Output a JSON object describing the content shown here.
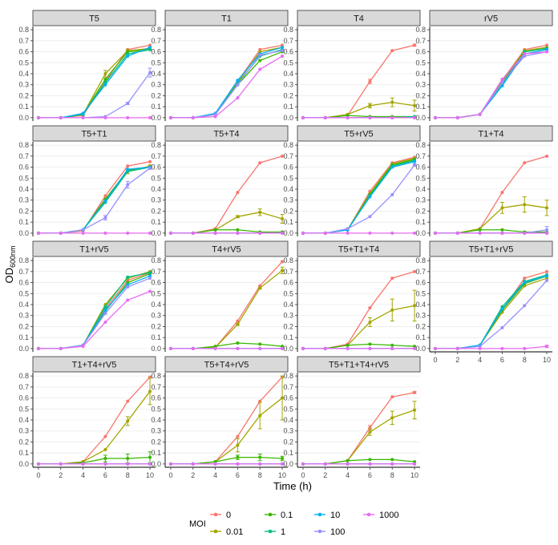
{
  "chart_data": {
    "type": "line",
    "xlabel": "Time (h)",
    "ylabel_main": "OD",
    "ylabel_sub": "600nm",
    "x": [
      0,
      2,
      4,
      6,
      8,
      10
    ],
    "x_ticks": [
      0,
      2,
      4,
      6,
      8,
      10
    ],
    "y_ticks": [
      0.0,
      0.1,
      0.2,
      0.3,
      0.4,
      0.5,
      0.6,
      0.7,
      0.8
    ],
    "y_tick_labels": [
      "0.0",
      "0.1",
      "0.2",
      "0.3",
      "0.4",
      "0.5",
      "0.6",
      "0.7",
      "0.8"
    ],
    "ylim": [
      -0.03,
      0.83
    ],
    "xlim": [
      -0.5,
      10.5
    ],
    "legend": {
      "title": "MOI",
      "position": "bottom",
      "entries": [
        {
          "key": "0",
          "label": "0",
          "color": "#F8766D"
        },
        {
          "key": "0.01",
          "label": "0.01",
          "color": "#A3A500"
        },
        {
          "key": "0.1",
          "label": "0.1",
          "color": "#39B600"
        },
        {
          "key": "1",
          "label": "1",
          "color": "#00BF7D"
        },
        {
          "key": "10",
          "label": "10",
          "color": "#00B0F6"
        },
        {
          "key": "100",
          "label": "100",
          "color": "#9590FF"
        },
        {
          "key": "1000",
          "label": "1000",
          "color": "#E76BF3"
        }
      ]
    },
    "panels": [
      {
        "title": "T5",
        "series": {
          "0": [
            0,
            0,
            0.02,
            0.33,
            0.62,
            0.66
          ],
          "0.01": [
            0,
            0,
            0.03,
            0.4,
            0.61,
            0.63
          ],
          "0.1": [
            0,
            0,
            0.03,
            0.35,
            0.6,
            0.62
          ],
          "1": [
            0,
            0,
            0.03,
            0.32,
            0.58,
            0.62
          ],
          "10": [
            0,
            0,
            0.04,
            0.3,
            0.56,
            0.64
          ],
          "100": [
            0,
            0,
            0,
            0.01,
            0.13,
            0.41
          ],
          "1000": [
            0,
            0,
            0,
            0,
            0,
            0
          ]
        },
        "errors": {
          "100": [
            0,
            0,
            0,
            0,
            0.01,
            0.04
          ],
          "0.01": [
            0,
            0,
            0,
            0.03,
            0.01,
            0.01
          ]
        }
      },
      {
        "title": "T1",
        "series": {
          "0": [
            0,
            0,
            0.03,
            0.33,
            0.62,
            0.66
          ],
          "0.01": [
            0,
            0,
            0.03,
            0.32,
            0.6,
            0.64
          ],
          "0.1": [
            0,
            0,
            0.03,
            0.3,
            0.52,
            0.6
          ],
          "1": [
            0,
            0,
            0.03,
            0.31,
            0.56,
            0.62
          ],
          "10": [
            0,
            0,
            0.04,
            0.34,
            0.58,
            0.64
          ],
          "100": [
            0,
            0,
            0.03,
            0.3,
            0.57,
            0.61
          ],
          "1000": [
            0,
            0,
            0.01,
            0.18,
            0.44,
            0.56
          ]
        },
        "errors": {}
      },
      {
        "title": "T4",
        "series": {
          "0": [
            0,
            0,
            0.02,
            0.33,
            0.61,
            0.66
          ],
          "0.01": [
            0,
            0,
            0.03,
            0.11,
            0.14,
            0.11
          ],
          "0.1": [
            0,
            0,
            0.02,
            0.01,
            0.01,
            0.01
          ],
          "1": [
            0,
            0,
            0,
            0,
            0,
            0.01
          ],
          "10": [
            0,
            0,
            0,
            0,
            0,
            0
          ],
          "100": [
            0,
            0,
            0,
            0,
            0,
            0
          ],
          "1000": [
            0,
            0,
            0,
            0,
            0,
            0
          ]
        },
        "errors": {
          "0.01": [
            0,
            0,
            0,
            0.02,
            0.04,
            0.05
          ],
          "0": [
            0,
            0,
            0,
            0.02,
            0,
            0.01
          ]
        }
      },
      {
        "title": "rV5",
        "series": {
          "0": [
            0,
            0,
            0.03,
            0.34,
            0.62,
            0.66
          ],
          "0.01": [
            0,
            0,
            0.03,
            0.33,
            0.61,
            0.64
          ],
          "0.1": [
            0,
            0,
            0.03,
            0.32,
            0.6,
            0.63
          ],
          "1": [
            0,
            0,
            0.03,
            0.3,
            0.6,
            0.63
          ],
          "10": [
            0,
            0,
            0.03,
            0.29,
            0.58,
            0.62
          ],
          "100": [
            0,
            0,
            0.03,
            0.32,
            0.56,
            0.6
          ],
          "1000": [
            0,
            0,
            0.03,
            0.35,
            0.58,
            0.6
          ]
        },
        "errors": {}
      },
      {
        "title": "T5+T1",
        "series": {
          "0": [
            0,
            0,
            0.02,
            0.34,
            0.61,
            0.65
          ],
          "0.01": [
            0,
            0,
            0.03,
            0.3,
            0.56,
            0.61
          ],
          "0.1": [
            0,
            0,
            0.03,
            0.31,
            0.57,
            0.6
          ],
          "1": [
            0,
            0,
            0.03,
            0.28,
            0.56,
            0.6
          ],
          "10": [
            0,
            0,
            0.03,
            0.29,
            0.58,
            0.6
          ],
          "100": [
            0,
            0,
            0.03,
            0.14,
            0.44,
            0.59
          ],
          "1000": [
            0,
            0,
            0,
            0,
            0,
            0
          ]
        },
        "errors": {
          "100": [
            0,
            0,
            0,
            0.02,
            0.03,
            0.01
          ],
          "0.01": [
            0,
            0,
            0,
            0,
            0.02,
            0.01
          ]
        }
      },
      {
        "title": "T5+T4",
        "series": {
          "0": [
            0,
            0,
            0.04,
            0.37,
            0.64,
            0.7
          ],
          "0.01": [
            0,
            0,
            0.03,
            0.15,
            0.19,
            0.13
          ],
          "0.1": [
            0,
            0,
            0.03,
            0.03,
            0.01,
            0.01
          ],
          "1": [
            0,
            0,
            0,
            0,
            0,
            0
          ],
          "10": [
            0,
            0,
            0,
            0,
            0,
            0
          ],
          "100": [
            0,
            0,
            0,
            0,
            0,
            0
          ],
          "1000": [
            0,
            0,
            0,
            0,
            0,
            0
          ]
        },
        "errors": {
          "0.01": [
            0,
            0,
            0,
            0.01,
            0.03,
            0.04
          ]
        }
      },
      {
        "title": "T5+rV5",
        "series": {
          "0": [
            0,
            0,
            0.03,
            0.38,
            0.64,
            0.69
          ],
          "0.01": [
            0,
            0,
            0.03,
            0.36,
            0.63,
            0.68
          ],
          "0.1": [
            0,
            0,
            0.03,
            0.35,
            0.62,
            0.67
          ],
          "1": [
            0,
            0,
            0.03,
            0.34,
            0.61,
            0.66
          ],
          "10": [
            0,
            0,
            0.03,
            0.33,
            0.6,
            0.65
          ],
          "100": [
            0,
            0,
            0.04,
            0.15,
            0.35,
            0.62
          ],
          "1000": [
            0,
            0,
            0,
            0,
            0,
            0
          ]
        },
        "errors": {
          "100": [
            0,
            0,
            0,
            0,
            0,
            0.01
          ]
        }
      },
      {
        "title": "T1+T4",
        "series": {
          "0": [
            0,
            0,
            0.04,
            0.37,
            0.64,
            0.7
          ],
          "0.01": [
            0,
            0,
            0.04,
            0.23,
            0.26,
            0.23
          ],
          "0.1": [
            0,
            0,
            0.03,
            0.03,
            0.01,
            0.01
          ],
          "1": [
            0,
            0,
            0,
            0,
            0,
            0
          ],
          "10": [
            0,
            0,
            0,
            0,
            0,
            0
          ],
          "100": [
            0,
            0,
            0,
            0,
            0,
            0.03
          ],
          "1000": [
            0,
            0,
            0,
            0,
            0,
            0
          ]
        },
        "errors": {
          "0.01": [
            0,
            0,
            0,
            0.05,
            0.07,
            0.07
          ],
          "100": [
            0,
            0,
            0,
            0,
            0,
            0.03
          ]
        }
      },
      {
        "title": "T1+rV5",
        "series": {
          "0": [
            0,
            0,
            0.03,
            0.36,
            0.62,
            0.69
          ],
          "0.01": [
            0,
            0,
            0.03,
            0.4,
            0.64,
            0.7
          ],
          "0.1": [
            0,
            0,
            0.03,
            0.34,
            0.6,
            0.68
          ],
          "1": [
            0,
            0,
            0.03,
            0.38,
            0.65,
            0.69
          ],
          "10": [
            0,
            0,
            0.03,
            0.35,
            0.58,
            0.66
          ],
          "100": [
            0,
            0,
            0.03,
            0.32,
            0.56,
            0.64
          ],
          "1000": [
            0,
            0,
            0.02,
            0.24,
            0.44,
            0.52
          ]
        },
        "errors": {}
      },
      {
        "title": "T4+rV5",
        "series": {
          "0": [
            0,
            0,
            0.01,
            0.25,
            0.57,
            0.79
          ],
          "0.01": [
            0,
            0,
            0.01,
            0.22,
            0.55,
            0.71
          ],
          "0.1": [
            0,
            0,
            0.02,
            0.05,
            0.04,
            0.02
          ],
          "1": [
            0,
            0,
            0,
            0,
            0,
            0
          ],
          "10": [
            0,
            0,
            0,
            0,
            0,
            0
          ],
          "100": [
            0,
            0,
            0,
            0,
            0,
            0
          ],
          "1000": [
            0,
            0,
            0,
            0,
            0,
            0
          ]
        },
        "errors": {
          "0.01": [
            0,
            0,
            0,
            0.01,
            0.01,
            0.03
          ]
        }
      },
      {
        "title": "T5+T1+T4",
        "series": {
          "0": [
            0,
            0,
            0.04,
            0.37,
            0.64,
            0.7
          ],
          "0.01": [
            0,
            0,
            0.03,
            0.24,
            0.35,
            0.39
          ],
          "0.1": [
            0,
            0,
            0.03,
            0.04,
            0.03,
            0.02
          ],
          "1": [
            0,
            0,
            0,
            0,
            0,
            0
          ],
          "10": [
            0,
            0,
            0,
            0,
            0,
            0
          ],
          "100": [
            0,
            0,
            0,
            0,
            0,
            0
          ],
          "1000": [
            0,
            0,
            0,
            0,
            0,
            0
          ]
        },
        "errors": {
          "0.01": [
            0,
            0,
            0,
            0.04,
            0.1,
            0.14
          ]
        }
      },
      {
        "title": "T5+T1+rV5",
        "series": {
          "0": [
            0,
            0,
            0.03,
            0.35,
            0.64,
            0.7
          ],
          "0.01": [
            0,
            0,
            0.03,
            0.33,
            0.57,
            0.64
          ],
          "0.1": [
            0,
            0,
            0.03,
            0.35,
            0.59,
            0.66
          ],
          "1": [
            0,
            0,
            0.03,
            0.38,
            0.61,
            0.67
          ],
          "10": [
            0,
            0,
            0.03,
            0.36,
            0.6,
            0.66
          ],
          "100": [
            0,
            0,
            0.02,
            0.19,
            0.39,
            0.62
          ],
          "1000": [
            0,
            0,
            0,
            0,
            0,
            0.02
          ]
        },
        "errors": {
          "1000": [
            0,
            0,
            0,
            0,
            0,
            0.01
          ]
        }
      },
      {
        "title": "T1+T4+rV5",
        "series": {
          "0": [
            0,
            0,
            0.02,
            0.25,
            0.57,
            0.79
          ],
          "0.01": [
            0,
            0,
            0.02,
            0.13,
            0.39,
            0.66
          ],
          "0.1": [
            0,
            0,
            0.01,
            0.05,
            0.05,
            0.06
          ],
          "1": [
            0,
            0,
            0,
            0,
            0,
            0
          ],
          "10": [
            0,
            0,
            0,
            0,
            0,
            0
          ],
          "100": [
            0,
            0,
            0,
            0,
            0,
            0
          ],
          "1000": [
            0,
            0,
            0,
            0,
            0,
            0
          ]
        },
        "errors": {
          "0.01": [
            0,
            0,
            0,
            0,
            0.04,
            0.12
          ],
          "0.1": [
            0,
            0,
            0,
            0.03,
            0.04,
            0.05
          ]
        }
      },
      {
        "title": "T5+T4+rV5",
        "series": {
          "0": [
            0,
            0,
            0.02,
            0.25,
            0.57,
            0.79
          ],
          "0.01": [
            0,
            0,
            0.02,
            0.17,
            0.44,
            0.6
          ],
          "0.1": [
            0,
            0,
            0.02,
            0.06,
            0.06,
            0.05
          ],
          "1": [
            0,
            0,
            0,
            0,
            0,
            0
          ],
          "10": [
            0,
            0,
            0,
            0,
            0,
            0
          ],
          "100": [
            0,
            0,
            0,
            0,
            0,
            0
          ],
          "1000": [
            0,
            0,
            0,
            0,
            0,
            0
          ]
        },
        "errors": {
          "0.01": [
            0,
            0,
            0,
            0.06,
            0.12,
            0.2
          ],
          "0.1": [
            0,
            0,
            0,
            0.02,
            0.03,
            0.02
          ]
        }
      },
      {
        "title": "T5+T1+T4+rV5",
        "series": {
          "0": [
            0,
            0,
            0.03,
            0.33,
            0.61,
            0.65
          ],
          "0.01": [
            0,
            0,
            0.03,
            0.29,
            0.42,
            0.49
          ],
          "0.1": [
            0,
            0,
            0.03,
            0.04,
            0.04,
            0.02
          ],
          "1": [
            0,
            0,
            0,
            0,
            0,
            0
          ],
          "10": [
            0,
            0,
            0,
            0,
            0,
            0
          ],
          "100": [
            0,
            0,
            0,
            0,
            0,
            0
          ],
          "1000": [
            0,
            0,
            0,
            0,
            0,
            0
          ]
        },
        "errors": {
          "0.01": [
            0,
            0,
            0,
            0.03,
            0.06,
            0.08
          ],
          "0": [
            0,
            0,
            0,
            0.02,
            0,
            0.01
          ]
        }
      }
    ]
  }
}
